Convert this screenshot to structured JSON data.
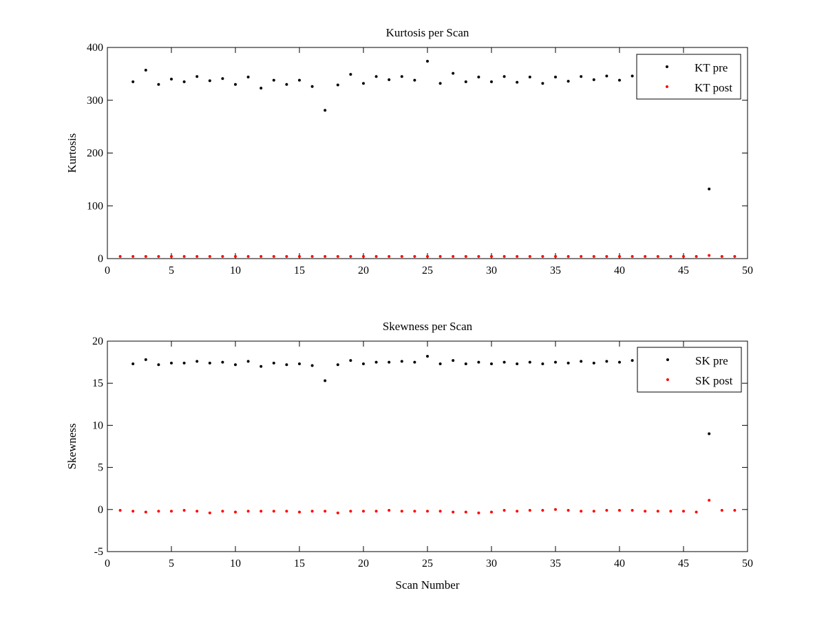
{
  "chart_data": [
    {
      "type": "scatter",
      "title": "Kurtosis per Scan",
      "xlabel": "",
      "ylabel": "Kurtosis",
      "xlim": [
        0,
        50
      ],
      "ylim": [
        0,
        400
      ],
      "xticks": [
        0,
        5,
        10,
        15,
        20,
        25,
        30,
        35,
        40,
        45,
        50
      ],
      "yticks": [
        0,
        100,
        200,
        300,
        400
      ],
      "legend_position": "top-right",
      "grid": false,
      "series": [
        {
          "name": "KT pre",
          "color": "#000000",
          "x": [
            2,
            3,
            4,
            5,
            6,
            7,
            8,
            9,
            10,
            11,
            12,
            13,
            14,
            15,
            16,
            17,
            18,
            19,
            20,
            21,
            22,
            23,
            24,
            25,
            26,
            27,
            28,
            29,
            30,
            31,
            32,
            33,
            34,
            35,
            36,
            37,
            38,
            39,
            40,
            41,
            42,
            43,
            44,
            45,
            46,
            47,
            48,
            49
          ],
          "y": [
            335,
            357,
            330,
            340,
            335,
            345,
            337,
            341,
            330,
            344,
            323,
            338,
            330,
            338,
            326,
            281,
            329,
            349,
            332,
            345,
            339,
            345,
            338,
            374,
            332,
            351,
            335,
            344,
            335,
            345,
            334,
            344,
            332,
            344,
            336,
            345,
            339,
            346,
            338,
            346,
            345,
            345,
            344,
            345,
            340,
            132,
            344,
            343
          ]
        },
        {
          "name": "KT post",
          "color": "#ff0000",
          "x": [
            1,
            2,
            3,
            4,
            5,
            6,
            7,
            8,
            9,
            10,
            11,
            12,
            13,
            14,
            15,
            16,
            17,
            18,
            19,
            20,
            21,
            22,
            23,
            24,
            25,
            26,
            27,
            28,
            29,
            30,
            31,
            32,
            33,
            34,
            35,
            36,
            37,
            38,
            39,
            40,
            41,
            42,
            43,
            44,
            45,
            46,
            47,
            48,
            49
          ],
          "y": [
            4,
            4,
            4,
            4,
            4,
            4,
            4,
            4,
            4,
            4,
            4,
            4,
            4,
            4,
            4,
            4,
            4,
            4,
            4,
            4,
            4,
            4,
            4,
            4,
            4,
            4,
            4,
            4,
            4,
            4,
            4,
            4,
            4,
            4,
            4,
            4,
            4,
            4,
            4,
            4,
            4,
            4,
            4,
            4,
            4,
            4,
            6,
            4,
            4
          ]
        }
      ]
    },
    {
      "type": "scatter",
      "title": "Skewness per Scan",
      "xlabel": "Scan Number",
      "ylabel": "Skewness",
      "xlim": [
        0,
        50
      ],
      "ylim": [
        -5,
        20
      ],
      "xticks": [
        0,
        5,
        10,
        15,
        20,
        25,
        30,
        35,
        40,
        45,
        50
      ],
      "yticks": [
        -5,
        0,
        5,
        10,
        15,
        20
      ],
      "legend_position": "top-right",
      "grid": false,
      "series": [
        {
          "name": "SK pre",
          "color": "#000000",
          "x": [
            2,
            3,
            4,
            5,
            6,
            7,
            8,
            9,
            10,
            11,
            12,
            13,
            14,
            15,
            16,
            17,
            18,
            19,
            20,
            21,
            22,
            23,
            24,
            25,
            26,
            27,
            28,
            29,
            30,
            31,
            32,
            33,
            34,
            35,
            36,
            37,
            38,
            39,
            40,
            41,
            42,
            43,
            44,
            45,
            46,
            47,
            48,
            49
          ],
          "y": [
            17.3,
            17.8,
            17.2,
            17.4,
            17.4,
            17.6,
            17.4,
            17.5,
            17.2,
            17.6,
            17.0,
            17.4,
            17.2,
            17.3,
            17.1,
            15.3,
            17.2,
            17.7,
            17.3,
            17.5,
            17.5,
            17.6,
            17.5,
            18.2,
            17.3,
            17.7,
            17.3,
            17.5,
            17.3,
            17.5,
            17.3,
            17.5,
            17.3,
            17.5,
            17.4,
            17.6,
            17.4,
            17.6,
            17.5,
            17.7,
            17.6,
            17.6,
            17.5,
            17.6,
            17.5,
            9.0,
            17.6,
            17.6
          ]
        },
        {
          "name": "SK post",
          "color": "#ff0000",
          "x": [
            1,
            2,
            3,
            4,
            5,
            6,
            7,
            8,
            9,
            10,
            11,
            12,
            13,
            14,
            15,
            16,
            17,
            18,
            19,
            20,
            21,
            22,
            23,
            24,
            25,
            26,
            27,
            28,
            29,
            30,
            31,
            32,
            33,
            34,
            35,
            36,
            37,
            38,
            39,
            40,
            41,
            42,
            43,
            44,
            45,
            46,
            47,
            48,
            49
          ],
          "y": [
            -0.1,
            -0.2,
            -0.3,
            -0.2,
            -0.2,
            -0.1,
            -0.2,
            -0.4,
            -0.2,
            -0.3,
            -0.2,
            -0.2,
            -0.2,
            -0.2,
            -0.3,
            -0.2,
            -0.2,
            -0.4,
            -0.2,
            -0.2,
            -0.2,
            -0.1,
            -0.2,
            -0.2,
            -0.2,
            -0.2,
            -0.3,
            -0.3,
            -0.4,
            -0.3,
            -0.1,
            -0.2,
            -0.1,
            -0.1,
            0.0,
            -0.1,
            -0.2,
            -0.2,
            -0.1,
            -0.1,
            -0.1,
            -0.2,
            -0.2,
            -0.2,
            -0.2,
            -0.3,
            1.1,
            -0.1,
            -0.1
          ]
        }
      ]
    }
  ]
}
